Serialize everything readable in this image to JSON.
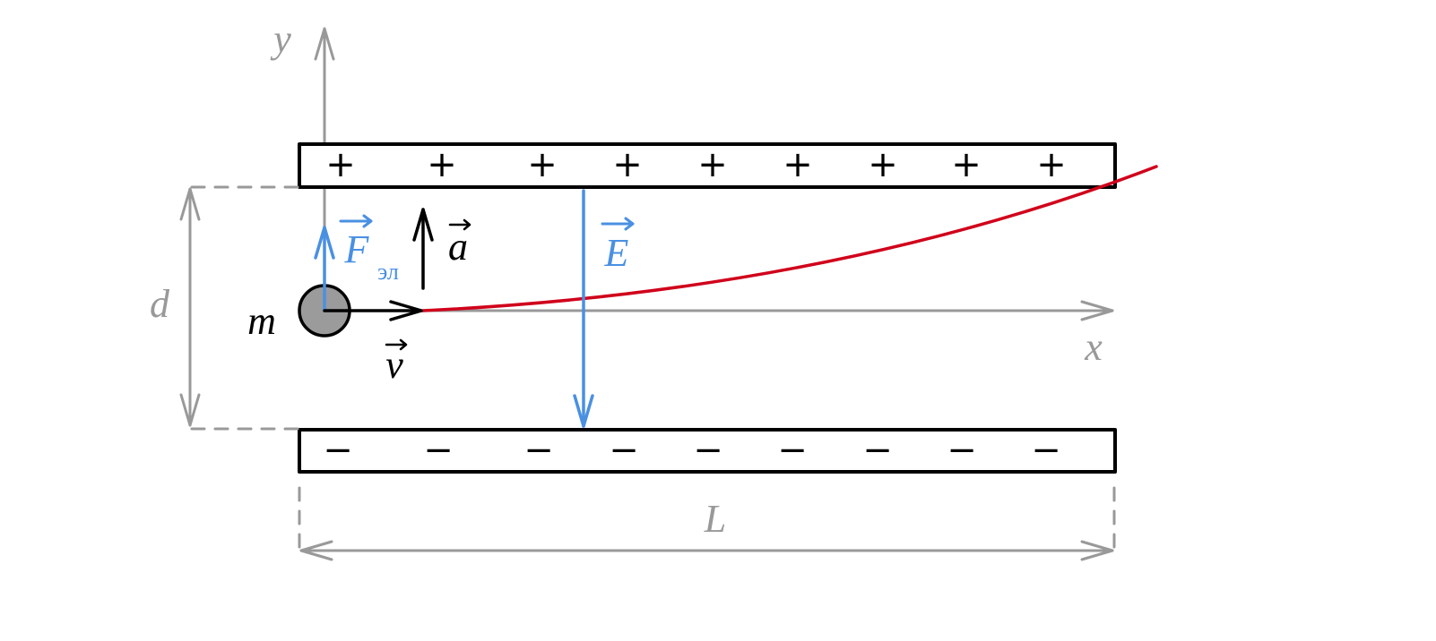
{
  "labels": {
    "y_axis": "y",
    "x_axis": "x",
    "gap": "d",
    "mass": "m",
    "length": "L",
    "force": "F",
    "force_subscript": "эл",
    "acceleration": "a",
    "velocity": "v",
    "field": "E"
  },
  "top_plate": {
    "charges": [
      "+",
      "+",
      "+",
      "+",
      "+",
      "+",
      "+",
      "+",
      "+"
    ]
  },
  "bottom_plate": {
    "charges": [
      "−",
      "−",
      "−",
      "−",
      "−",
      "−",
      "−",
      "−",
      "−"
    ]
  }
}
